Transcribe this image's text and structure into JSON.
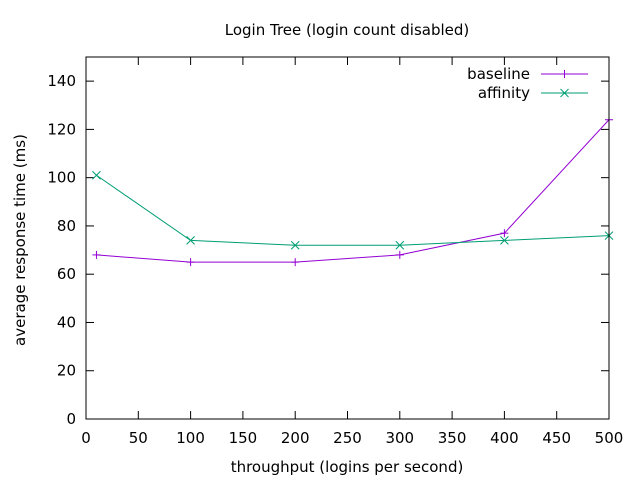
{
  "chart_data": {
    "type": "line",
    "title": "Login Tree (login count disabled)",
    "xlabel": "throughput (logins per second)",
    "ylabel": "average response time (ms)",
    "xlim": [
      0,
      500
    ],
    "ylim": [
      0,
      150
    ],
    "xticks": [
      "0",
      "50",
      "100",
      "150",
      "200",
      "250",
      "300",
      "350",
      "400",
      "450",
      "500"
    ],
    "yticks": [
      "0",
      "20",
      "40",
      "60",
      "80",
      "100",
      "120",
      "140"
    ],
    "grid": false,
    "legend_position": "top-right",
    "series": [
      {
        "name": "baseline",
        "color": "#9400d3",
        "marker": "plus",
        "x": [
          10,
          100,
          200,
          300,
          400,
          500
        ],
        "y": [
          68,
          65,
          65,
          68,
          77,
          124
        ]
      },
      {
        "name": "affinity",
        "color": "#009e73",
        "marker": "cross",
        "x": [
          10,
          100,
          200,
          300,
          400,
          500
        ],
        "y": [
          101,
          74,
          72,
          72,
          74,
          76
        ]
      }
    ]
  }
}
